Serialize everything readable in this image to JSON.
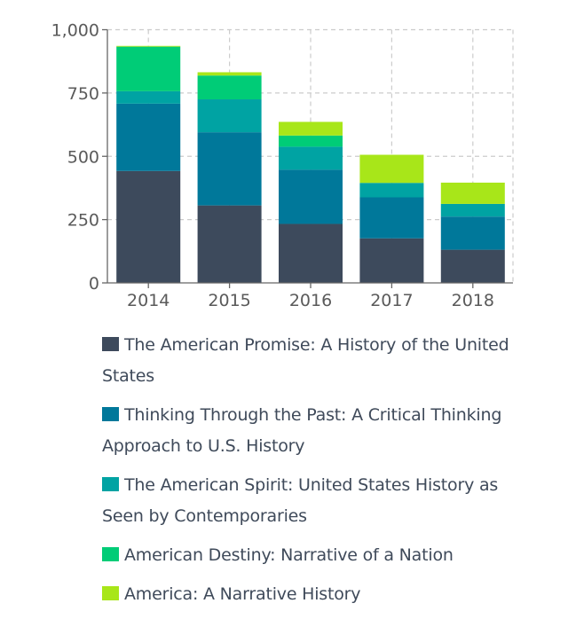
{
  "chart_data": {
    "type": "bar",
    "stacked": true,
    "title": "",
    "xlabel": "",
    "ylabel": "",
    "categories": [
      "2014",
      "2015",
      "2016",
      "2017",
      "2018"
    ],
    "ylim": [
      0,
      1000
    ],
    "yticks": [
      0,
      250,
      500,
      750,
      1000
    ],
    "ytick_labels": [
      "0",
      "250",
      "500",
      "750",
      "1,000"
    ],
    "grid": true,
    "legend_position": "bottom",
    "series": [
      {
        "name": "The American Promise: A History of the United States",
        "color": "#3d4a5c",
        "values": [
          442,
          306,
          233,
          176,
          131
        ]
      },
      {
        "name": "Thinking Through the Past: A Critical Thinking Approach to U.S. History",
        "color": "#00789a",
        "values": [
          266,
          289,
          214,
          162,
          131
        ]
      },
      {
        "name": "The American Spirit: United States History as Seen by Contemporaries",
        "color": "#00a3a3",
        "values": [
          49,
          130,
          91,
          57,
          50
        ]
      },
      {
        "name": "American Destiny: Narrative of a Nation",
        "color": "#00cc77",
        "values": [
          176,
          94,
          44,
          0,
          0
        ]
      },
      {
        "name": "America: A Narrative History",
        "color": "#a8e619",
        "values": [
          3,
          13,
          54,
          111,
          84
        ]
      }
    ]
  }
}
